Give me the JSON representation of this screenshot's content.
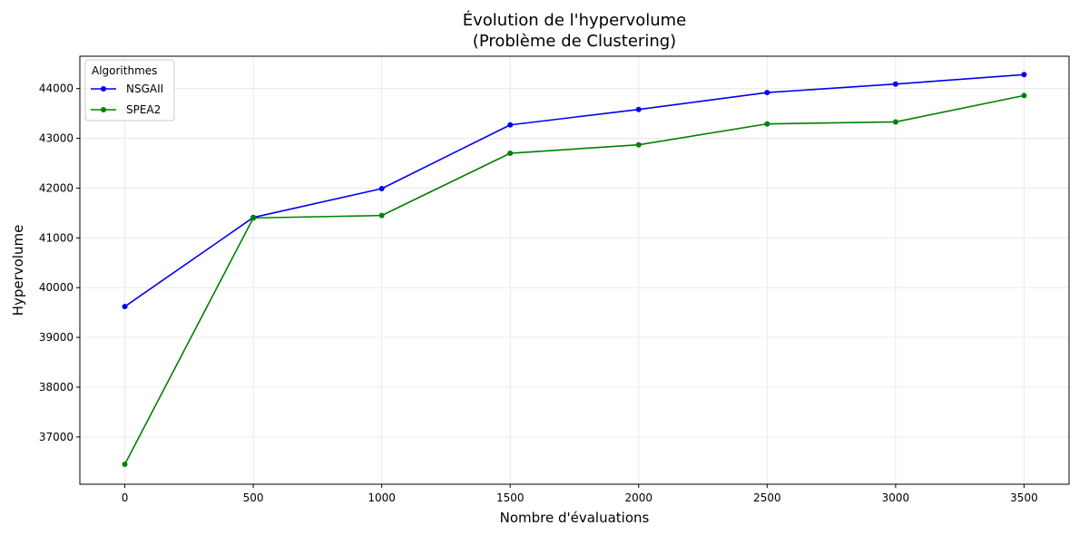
{
  "chart_data": {
    "type": "line",
    "title_line1": "Évolution de l'hypervolume",
    "title_line2": "(Problème de Clustering)",
    "xlabel": "Nombre d'évaluations",
    "ylabel": "Hypervolume",
    "x": [
      0,
      500,
      1000,
      1500,
      2000,
      2500,
      3000,
      3500
    ],
    "xlim": [
      -175,
      3675
    ],
    "ylim": [
      36050,
      44650
    ],
    "xticks": [
      0,
      500,
      1000,
      1500,
      2000,
      2500,
      3000,
      3500
    ],
    "yticks": [
      37000,
      38000,
      39000,
      40000,
      41000,
      42000,
      43000,
      44000
    ],
    "grid": true,
    "legend": {
      "title": "Algorithmes",
      "position": "top-left"
    },
    "series": [
      {
        "name": "NSGAII",
        "color": "#0000ee",
        "values": [
          39620,
          41410,
          41990,
          43270,
          43580,
          43920,
          44090,
          44280
        ]
      },
      {
        "name": "SPEA2",
        "color": "#008000",
        "values": [
          36450,
          41400,
          41450,
          42700,
          42870,
          43290,
          43330,
          43860
        ]
      }
    ]
  }
}
